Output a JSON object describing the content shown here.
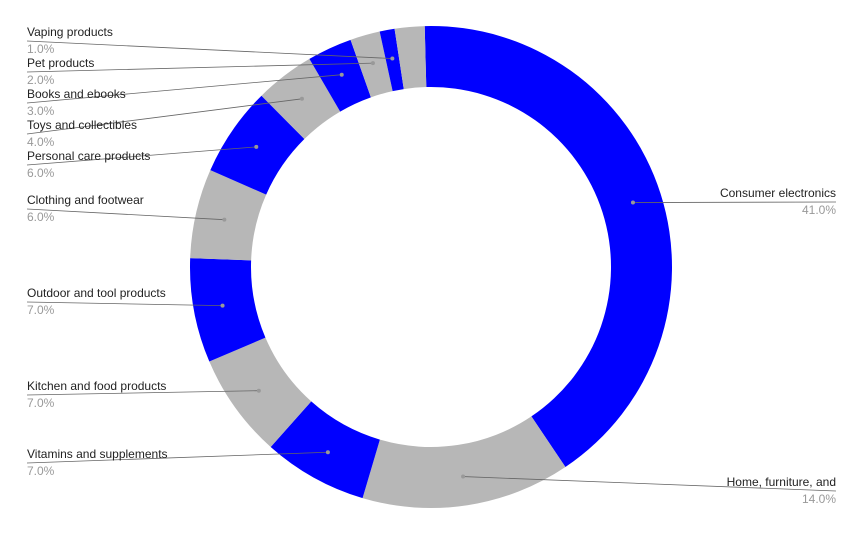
{
  "chart_data": {
    "type": "donut",
    "categories": [
      "Consumer electronics",
      "Home, furniture, and",
      "Vitamins and supplements",
      "Kitchen and food products",
      "Outdoor and tool products",
      "Clothing and footwear",
      "Personal care products",
      "Toys and collectibles",
      "Books and ebooks",
      "Pet products",
      "Vaping products",
      null
    ],
    "values": [
      41,
      14,
      7,
      7,
      7,
      6,
      6,
      4,
      3,
      2,
      1,
      2
    ],
    "value_labels": [
      "41.0%",
      "14.0%",
      "7.0%",
      "7.0%",
      "7.0%",
      "6.0%",
      "6.0%",
      "4.0%",
      "3.0%",
      "2.0%",
      "1.0%",
      null
    ],
    "colors": [
      "#0000ff",
      "#b7b7b7"
    ]
  }
}
